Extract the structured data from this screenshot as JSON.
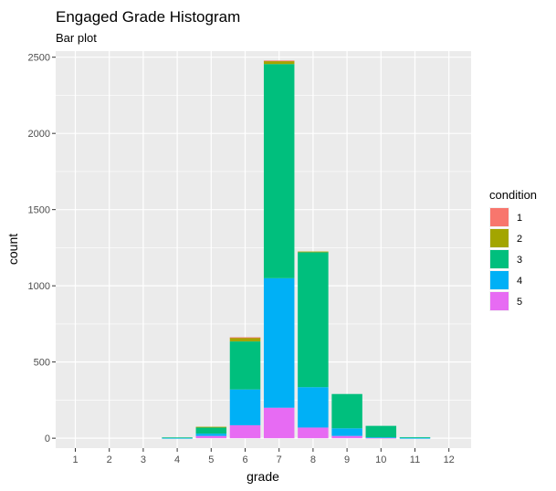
{
  "chart_data": {
    "type": "bar",
    "stacked": true,
    "title": "Engaged Grade Histogram",
    "subtitle": "Bar plot",
    "xlabel": "grade",
    "ylabel": "count",
    "categories": [
      "1",
      "2",
      "3",
      "4",
      "5",
      "6",
      "7",
      "8",
      "9",
      "10",
      "11",
      "12"
    ],
    "ylim": [
      -65,
      2540
    ],
    "yticks": [
      0,
      500,
      1000,
      1500,
      2000,
      2500
    ],
    "grid": true,
    "legend": {
      "title": "condition",
      "position": "right"
    },
    "series": [
      {
        "name": "5",
        "color": "#E76BF3",
        "values": [
          0,
          0,
          0,
          0,
          15,
          85,
          200,
          70,
          15,
          3,
          0,
          0
        ]
      },
      {
        "name": "4",
        "color": "#00B0F6",
        "values": [
          0,
          0,
          0,
          2,
          15,
          235,
          850,
          265,
          50,
          3,
          2,
          0
        ]
      },
      {
        "name": "3",
        "color": "#00BF7D",
        "values": [
          0,
          0,
          0,
          3,
          40,
          315,
          1405,
          885,
          225,
          75,
          5,
          0
        ]
      },
      {
        "name": "2",
        "color": "#A3A500",
        "values": [
          0,
          0,
          0,
          0,
          5,
          25,
          20,
          5,
          0,
          0,
          0,
          0
        ]
      },
      {
        "name": "1",
        "color": "#F8766D",
        "values": [
          0,
          0,
          0,
          0,
          0,
          2,
          3,
          0,
          0,
          0,
          0,
          0
        ]
      }
    ]
  }
}
